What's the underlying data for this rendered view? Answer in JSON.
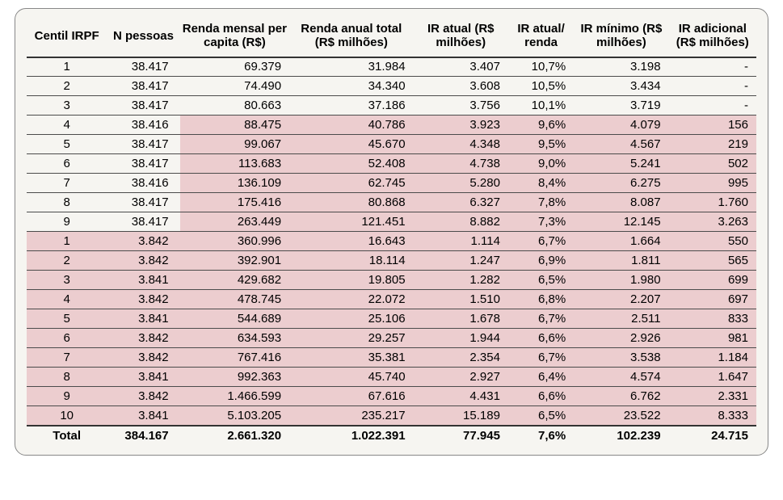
{
  "table": {
    "columns": [
      "Centil IRPF",
      "N pessoas",
      "Renda mensal per capita (R$)",
      "Renda anual total (R$ milhões)",
      "IR atual (R$ milhões)",
      "IR atual/ renda",
      "IR mínimo (R$ milhões)",
      "IR adicional (R$ milhões)"
    ],
    "rows": [
      {
        "hl": "none",
        "cells": [
          "1",
          "38.417",
          "69.379",
          "31.984",
          "3.407",
          "10,7%",
          "3.198",
          "-"
        ]
      },
      {
        "hl": "none",
        "cells": [
          "2",
          "38.417",
          "74.490",
          "34.340",
          "3.608",
          "10,5%",
          "3.434",
          "-"
        ]
      },
      {
        "hl": "none",
        "cells": [
          "3",
          "38.417",
          "80.663",
          "37.186",
          "3.756",
          "10,1%",
          "3.719",
          "-"
        ]
      },
      {
        "hl": "partial",
        "cells": [
          "4",
          "38.416",
          "88.475",
          "40.786",
          "3.923",
          "9,6%",
          "4.079",
          "156"
        ]
      },
      {
        "hl": "partial",
        "cells": [
          "5",
          "38.417",
          "99.067",
          "45.670",
          "4.348",
          "9,5%",
          "4.567",
          "219"
        ]
      },
      {
        "hl": "partial",
        "cells": [
          "6",
          "38.417",
          "113.683",
          "52.408",
          "4.738",
          "9,0%",
          "5.241",
          "502"
        ]
      },
      {
        "hl": "partial",
        "cells": [
          "7",
          "38.416",
          "136.109",
          "62.745",
          "5.280",
          "8,4%",
          "6.275",
          "995"
        ]
      },
      {
        "hl": "partial",
        "cells": [
          "8",
          "38.417",
          "175.416",
          "80.868",
          "6.327",
          "7,8%",
          "8.087",
          "1.760"
        ]
      },
      {
        "hl": "partial",
        "cells": [
          "9",
          "38.417",
          "263.449",
          "121.451",
          "8.882",
          "7,3%",
          "12.145",
          "3.263"
        ]
      },
      {
        "hl": "full",
        "cells": [
          "1",
          "3.842",
          "360.996",
          "16.643",
          "1.114",
          "6,7%",
          "1.664",
          "550"
        ]
      },
      {
        "hl": "full",
        "cells": [
          "2",
          "3.842",
          "392.901",
          "18.114",
          "1.247",
          "6,9%",
          "1.811",
          "565"
        ]
      },
      {
        "hl": "full",
        "cells": [
          "3",
          "3.841",
          "429.682",
          "19.805",
          "1.282",
          "6,5%",
          "1.980",
          "699"
        ]
      },
      {
        "hl": "full",
        "cells": [
          "4",
          "3.842",
          "478.745",
          "22.072",
          "1.510",
          "6,8%",
          "2.207",
          "697"
        ]
      },
      {
        "hl": "full",
        "cells": [
          "5",
          "3.841",
          "544.689",
          "25.106",
          "1.678",
          "6,7%",
          "2.511",
          "833"
        ]
      },
      {
        "hl": "full",
        "cells": [
          "6",
          "3.842",
          "634.593",
          "29.257",
          "1.944",
          "6,6%",
          "2.926",
          "981"
        ]
      },
      {
        "hl": "full",
        "cells": [
          "7",
          "3.842",
          "767.416",
          "35.381",
          "2.354",
          "6,7%",
          "3.538",
          "1.184"
        ]
      },
      {
        "hl": "full",
        "cells": [
          "8",
          "3.841",
          "992.363",
          "45.740",
          "2.927",
          "6,4%",
          "4.574",
          "1.647"
        ]
      },
      {
        "hl": "full",
        "cells": [
          "9",
          "3.842",
          "1.466.599",
          "67.616",
          "4.431",
          "6,6%",
          "6.762",
          "2.331"
        ]
      },
      {
        "hl": "full",
        "cells": [
          "10",
          "3.841",
          "5.103.205",
          "235.217",
          "15.189",
          "6,5%",
          "23.522",
          "8.333"
        ]
      }
    ],
    "total": {
      "label": "Total",
      "cells": [
        "384.167",
        "2.661.320",
        "1.022.391",
        "77.945",
        "7,6%",
        "102.239",
        "24.715"
      ]
    },
    "highlight_color": "#eccdcf",
    "background_color": "#f6f5f1",
    "border_color": "#4b4b4b"
  }
}
